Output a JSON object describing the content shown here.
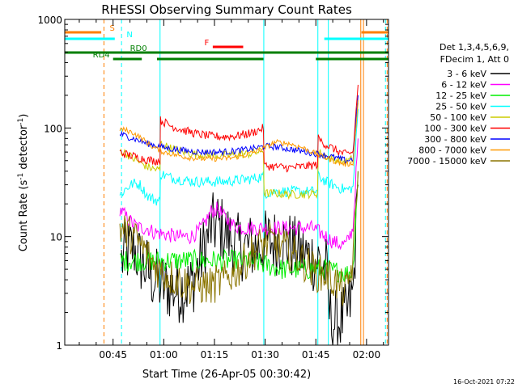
{
  "chart_data": {
    "type": "line",
    "title": "RHESSI Observing Summary Count Rates",
    "xlabel": "Start Time (26-Apr-05 00:30:42)",
    "ylabel_main": "Count Rate (s",
    "ylabel_sup1": "-1",
    "ylabel_mid": " detector",
    "ylabel_sup2": "-1",
    "ylabel_end": ")",
    "yscale": "log",
    "ylim": [
      1,
      1000
    ],
    "xlim_minutes": [
      30.7,
      126.5
    ],
    "x_ticks": [
      {
        "minute": 45,
        "label": "00:45"
      },
      {
        "minute": 60,
        "label": "01:00"
      },
      {
        "minute": 75,
        "label": "01:15"
      },
      {
        "minute": 90,
        "label": "01:30"
      },
      {
        "minute": 105,
        "label": "01:45"
      },
      {
        "minute": 120,
        "label": "02:00"
      }
    ],
    "y_ticks": [
      {
        "value": 1,
        "label": "1"
      },
      {
        "value": 10,
        "label": "10"
      },
      {
        "value": 100,
        "label": "100"
      },
      {
        "value": 1000,
        "label": "1000"
      }
    ],
    "legend_header": [
      "Det 1,3,4,5,6,9,",
      "FDecim 1, Att 0"
    ],
    "series": [
      {
        "name": "3 - 6 keV",
        "color": "#000000",
        "noise": 0.32,
        "points": [
          [
            47.5,
            6
          ],
          [
            49,
            7
          ],
          [
            51,
            8
          ],
          [
            53,
            6
          ],
          [
            55,
            5
          ],
          [
            57,
            4
          ],
          [
            60,
            3.5
          ],
          [
            64,
            3.2
          ],
          [
            68,
            3.5
          ],
          [
            70,
            5
          ],
          [
            72,
            8
          ],
          [
            74,
            12
          ],
          [
            76,
            13
          ],
          [
            79,
            10
          ],
          [
            82,
            8
          ],
          [
            85,
            8
          ],
          [
            88,
            8
          ],
          [
            91,
            9
          ],
          [
            94,
            9
          ],
          [
            97,
            8.5
          ],
          [
            100,
            7
          ],
          [
            103,
            6.5
          ],
          [
            106,
            6
          ],
          [
            108,
            5
          ],
          [
            109,
            2
          ],
          [
            110,
            1.6
          ],
          [
            112,
            1.7
          ],
          [
            114,
            1.8
          ],
          [
            116,
            3
          ],
          [
            117.5,
            30
          ]
        ]
      },
      {
        "name": "6 - 12 keV",
        "color": "#ff00ff",
        "noise": 0.07,
        "points": [
          [
            47,
            18
          ],
          [
            49,
            15
          ],
          [
            51,
            13
          ],
          [
            53,
            12
          ],
          [
            55,
            12
          ],
          [
            57,
            11
          ],
          [
            60,
            10.5
          ],
          [
            64,
            10
          ],
          [
            68,
            10
          ],
          [
            70,
            11
          ],
          [
            72,
            13
          ],
          [
            74,
            17
          ],
          [
            76,
            18
          ],
          [
            78,
            15
          ],
          [
            80,
            13
          ],
          [
            83,
            12
          ],
          [
            86,
            12
          ],
          [
            89,
            12
          ],
          [
            92,
            12
          ],
          [
            95,
            12
          ],
          [
            98,
            12
          ],
          [
            101,
            12
          ],
          [
            104,
            12
          ],
          [
            106,
            11
          ],
          [
            108,
            10
          ],
          [
            110,
            9
          ],
          [
            112,
            8.5
          ],
          [
            114,
            8.5
          ],
          [
            116,
            12
          ],
          [
            117.5,
            80
          ]
        ]
      },
      {
        "name": "12 - 25 keV",
        "color": "#00ee00",
        "noise": 0.1,
        "points": [
          [
            47,
            6
          ],
          [
            50,
            6
          ],
          [
            55,
            6
          ],
          [
            60,
            6
          ],
          [
            65,
            6
          ],
          [
            70,
            6
          ],
          [
            75,
            6
          ],
          [
            80,
            6
          ],
          [
            85,
            6
          ],
          [
            90,
            5.5
          ],
          [
            95,
            5
          ],
          [
            100,
            5
          ],
          [
            105,
            5
          ],
          [
            108,
            5
          ],
          [
            110,
            4.8
          ],
          [
            112,
            4.8
          ],
          [
            114,
            4.5
          ],
          [
            116,
            5
          ],
          [
            117.5,
            40
          ]
        ]
      },
      {
        "name": "25 - 50 keV",
        "color": "#00ffff",
        "noise": 0.05,
        "points": [
          [
            47,
            24
          ],
          [
            49,
            28
          ],
          [
            51,
            31
          ],
          [
            53,
            30
          ],
          [
            55,
            24
          ],
          [
            57,
            22
          ],
          [
            58.9,
            21
          ],
          [
            59,
            38
          ],
          [
            62,
            35
          ],
          [
            66,
            33
          ],
          [
            70,
            32
          ],
          [
            74,
            32
          ],
          [
            78,
            32
          ],
          [
            82,
            33
          ],
          [
            86,
            34
          ],
          [
            89.5,
            36
          ],
          [
            89.7,
            25
          ],
          [
            93,
            26
          ],
          [
            97,
            26
          ],
          [
            101,
            26
          ],
          [
            105.5,
            26
          ],
          [
            105.7,
            36
          ],
          [
            108,
            32
          ],
          [
            110,
            30
          ],
          [
            112,
            28
          ],
          [
            114,
            27
          ],
          [
            116,
            28
          ],
          [
            117.5,
            150
          ]
        ]
      },
      {
        "name": "50 - 100 keV",
        "color": "#cccc00",
        "noise": 0.04,
        "points": [
          [
            47,
            62
          ],
          [
            49,
            58
          ],
          [
            51,
            52
          ],
          [
            53,
            48
          ],
          [
            55,
            44
          ],
          [
            57,
            42
          ],
          [
            58.9,
            41
          ],
          [
            59,
            72
          ],
          [
            62,
            65
          ],
          [
            66,
            60
          ],
          [
            70,
            57
          ],
          [
            74,
            56
          ],
          [
            78,
            56
          ],
          [
            82,
            57
          ],
          [
            86,
            58
          ],
          [
            89.5,
            62
          ],
          [
            89.7,
            25
          ],
          [
            93,
            25
          ],
          [
            97,
            24.5
          ],
          [
            101,
            24.5
          ],
          [
            105.5,
            25
          ],
          [
            105.7,
            60
          ],
          [
            108,
            55
          ],
          [
            110,
            52
          ],
          [
            112,
            50
          ],
          [
            114,
            49
          ],
          [
            116,
            52
          ],
          [
            117.5,
            170
          ]
        ]
      },
      {
        "name": "100 - 300 keV",
        "color": "#ff0000",
        "noise": 0.04,
        "points": [
          [
            47,
            60
          ],
          [
            49,
            57
          ],
          [
            51,
            55
          ],
          [
            53,
            53
          ],
          [
            55,
            51
          ],
          [
            57,
            50
          ],
          [
            58.9,
            50
          ],
          [
            59,
            118
          ],
          [
            62,
            105
          ],
          [
            66,
            95
          ],
          [
            70,
            88
          ],
          [
            74,
            84
          ],
          [
            78,
            83
          ],
          [
            82,
            85
          ],
          [
            86,
            90
          ],
          [
            89.5,
            100
          ],
          [
            89.7,
            45
          ],
          [
            93,
            44
          ],
          [
            97,
            43
          ],
          [
            101,
            44
          ],
          [
            105.5,
            46
          ],
          [
            105.7,
            80
          ],
          [
            108,
            70
          ],
          [
            110,
            65
          ],
          [
            112,
            60
          ],
          [
            114,
            57
          ],
          [
            116,
            60
          ],
          [
            117.5,
            250
          ]
        ]
      },
      {
        "name": "300 - 800 keV",
        "color": "#0000ff",
        "noise": 0.03,
        "points": [
          [
            47,
            88
          ],
          [
            49,
            84
          ],
          [
            51,
            80
          ],
          [
            53,
            76
          ],
          [
            55,
            72
          ],
          [
            57,
            70
          ],
          [
            60,
            66
          ],
          [
            64,
            63
          ],
          [
            68,
            61
          ],
          [
            72,
            60
          ],
          [
            76,
            60
          ],
          [
            80,
            61
          ],
          [
            84,
            63
          ],
          [
            88,
            66
          ],
          [
            90,
            68
          ],
          [
            93,
            67
          ],
          [
            97,
            64
          ],
          [
            101,
            61
          ],
          [
            105,
            58
          ],
          [
            108,
            56
          ],
          [
            110,
            54
          ],
          [
            112,
            52
          ],
          [
            114,
            50
          ],
          [
            116,
            52
          ],
          [
            117.5,
            200
          ]
        ]
      },
      {
        "name": "800 - 7000 keV",
        "color": "#ff9900",
        "noise": 0.025,
        "points": [
          [
            47,
            98
          ],
          [
            49,
            95
          ],
          [
            51,
            90
          ],
          [
            53,
            82
          ],
          [
            55,
            74
          ],
          [
            57,
            66
          ],
          [
            60,
            60
          ],
          [
            64,
            56
          ],
          [
            68,
            53
          ],
          [
            72,
            52
          ],
          [
            76,
            52
          ],
          [
            80,
            53
          ],
          [
            84,
            56
          ],
          [
            88,
            62
          ],
          [
            90,
            66
          ],
          [
            93,
            74
          ],
          [
            97,
            72
          ],
          [
            101,
            66
          ],
          [
            105,
            58
          ],
          [
            108,
            53
          ],
          [
            110,
            50
          ],
          [
            112,
            48
          ],
          [
            114,
            46
          ],
          [
            116,
            48
          ],
          [
            117.5,
            180
          ]
        ]
      },
      {
        "name": "7000 - 15000 keV",
        "color": "#8b7500",
        "noise": 0.18,
        "points": [
          [
            47,
            12
          ],
          [
            49,
            11
          ],
          [
            51,
            10
          ],
          [
            53,
            8.5
          ],
          [
            55,
            7
          ],
          [
            57,
            5.5
          ],
          [
            60,
            4.5
          ],
          [
            64,
            4
          ],
          [
            68,
            3.5
          ],
          [
            70,
            3.5
          ],
          [
            74,
            3.5
          ],
          [
            78,
            4
          ],
          [
            82,
            5
          ],
          [
            86,
            7
          ],
          [
            89,
            8.5
          ],
          [
            92,
            9
          ],
          [
            95,
            8
          ],
          [
            98,
            7
          ],
          [
            101,
            6
          ],
          [
            104,
            5
          ],
          [
            106,
            4.5
          ],
          [
            108,
            4.5
          ],
          [
            110,
            4
          ],
          [
            112,
            3.5
          ],
          [
            114,
            3
          ],
          [
            116,
            6
          ],
          [
            117.5,
            40
          ]
        ]
      }
    ],
    "flags": [
      {
        "label": "S",
        "color": "#ff7f00",
        "segments": [
          [
            30.7,
            41.5
          ],
          [
            118.5,
            126.5
          ]
        ]
      },
      {
        "label": "N",
        "color": "#00ffff",
        "segments": [
          [
            30.7,
            45.5
          ],
          [
            107.5,
            126.5
          ]
        ]
      },
      {
        "label": "F",
        "color": "#ff0000",
        "segments": [
          [
            74.5,
            83.5
          ]
        ]
      },
      {
        "label": "RD0",
        "color": "#007f00",
        "segments": [
          [
            30.7,
            126.5
          ]
        ]
      },
      {
        "label": "RD4",
        "color": "#007f00",
        "segments": [
          [
            45,
            53.5
          ],
          [
            58,
            89.5
          ],
          [
            105,
            126.5
          ]
        ]
      }
    ],
    "vlines": [
      {
        "minute": 30.7,
        "color": "#00ffff",
        "dash": false
      },
      {
        "minute": 42.3,
        "color": "#ff7f00",
        "dash": true
      },
      {
        "minute": 47.5,
        "color": "#00ffff",
        "dash": true
      },
      {
        "minute": 58.9,
        "color": "#00ffff",
        "dash": false
      },
      {
        "minute": 89.6,
        "color": "#00ffff",
        "dash": false
      },
      {
        "minute": 105.6,
        "color": "#00ffff",
        "dash": false
      },
      {
        "minute": 108.7,
        "color": "#00ffff",
        "dash": false
      },
      {
        "minute": 118.3,
        "color": "#ff7f00",
        "dash": false
      },
      {
        "minute": 119.1,
        "color": "#ff7f00",
        "dash": false
      },
      {
        "minute": 125.6,
        "color": "#00ffff",
        "dash": true
      },
      {
        "minute": 126.1,
        "color": "#ff7f00",
        "dash": true
      }
    ],
    "grid": false,
    "legend_position": "right",
    "timestamp": "16-Oct-2021 07:22"
  }
}
